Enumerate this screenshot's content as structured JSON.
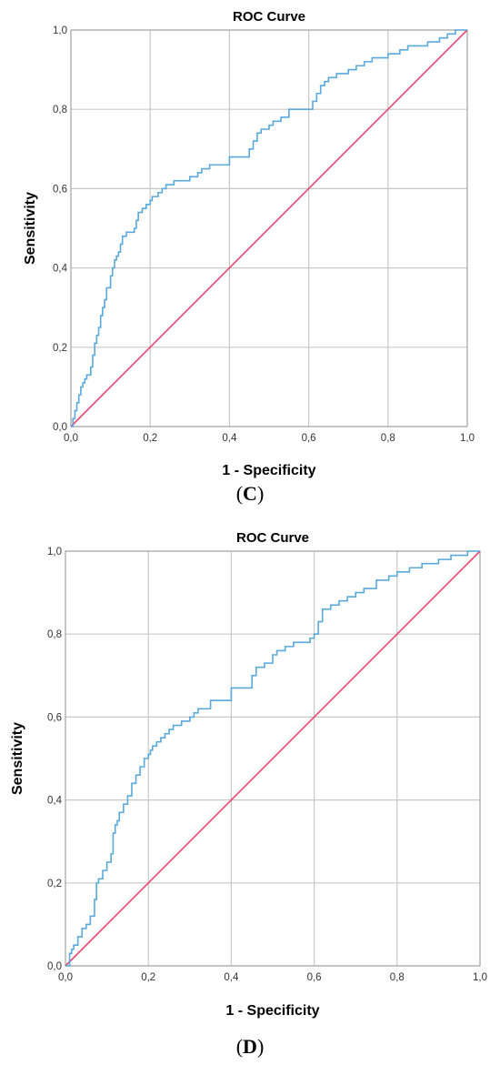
{
  "chart_data": [
    {
      "type": "line",
      "panel_label": "C",
      "title": "ROC Curve",
      "xlabel": "1 - Specificity",
      "ylabel": "Sensitivity",
      "xlim": [
        0,
        1
      ],
      "ylim": [
        0,
        1
      ],
      "grid": true,
      "x_ticks": [
        "0,0",
        "0,2",
        "0,4",
        "0,6",
        "0,8",
        "1,0"
      ],
      "y_ticks": [
        "0,0",
        "0,2",
        "0,4",
        "0,6",
        "0,8",
        "1,0"
      ],
      "colors": {
        "roc": "#5aa8dc",
        "reference": "#e8476e",
        "grid": "#c8c8c8"
      },
      "series": [
        {
          "x": [
            0,
            0.005,
            0.01,
            0.015,
            0.02,
            0.025,
            0.03,
            0.035,
            0.04,
            0.05,
            0.055,
            0.06,
            0.065,
            0.07,
            0.075,
            0.08,
            0.085,
            0.09,
            0.1,
            0.105,
            0.11,
            0.115,
            0.12,
            0.125,
            0.13,
            0.14,
            0.15,
            0.16,
            0.165,
            0.17,
            0.18,
            0.19,
            0.2,
            0.205,
            0.21,
            0.22,
            0.23,
            0.24,
            0.25,
            0.26,
            0.27,
            0.28,
            0.3,
            0.31,
            0.32,
            0.33,
            0.35,
            0.4,
            0.45,
            0.46,
            0.47,
            0.48,
            0.5,
            0.51,
            0.53,
            0.55,
            0.57,
            0.59,
            0.6,
            0.61,
            0.62,
            0.63,
            0.64,
            0.65,
            0.67,
            0.7,
            0.72,
            0.74,
            0.76,
            0.8,
            0.83,
            0.85,
            0.87,
            0.9,
            0.93,
            0.95,
            0.97,
            1
          ],
          "y": [
            0,
            0.02,
            0.04,
            0.06,
            0.08,
            0.1,
            0.11,
            0.12,
            0.13,
            0.15,
            0.18,
            0.21,
            0.23,
            0.25,
            0.28,
            0.3,
            0.32,
            0.35,
            0.38,
            0.4,
            0.42,
            0.43,
            0.44,
            0.46,
            0.48,
            0.49,
            0.49,
            0.5,
            0.52,
            0.54,
            0.55,
            0.56,
            0.57,
            0.58,
            0.58,
            0.59,
            0.6,
            0.61,
            0.61,
            0.62,
            0.62,
            0.62,
            0.63,
            0.63,
            0.64,
            0.65,
            0.66,
            0.68,
            0.7,
            0.72,
            0.74,
            0.75,
            0.76,
            0.77,
            0.78,
            0.8,
            0.8,
            0.8,
            0.8,
            0.82,
            0.84,
            0.86,
            0.87,
            0.88,
            0.89,
            0.9,
            0.91,
            0.92,
            0.93,
            0.94,
            0.95,
            0.96,
            0.96,
            0.97,
            0.98,
            0.99,
            1,
            1
          ]
        },
        {
          "x": [
            0,
            1
          ],
          "y": [
            0,
            1
          ]
        }
      ]
    },
    {
      "type": "line",
      "panel_label": "D",
      "title": "ROC Curve",
      "xlabel": "1 - Specificity",
      "ylabel": "Sensitivity",
      "xlim": [
        0,
        1
      ],
      "ylim": [
        0,
        1
      ],
      "grid": true,
      "x_ticks": [
        "0,0",
        "0,2",
        "0,4",
        "0,6",
        "0,8",
        "1,0"
      ],
      "y_ticks": [
        "0,0",
        "0,2",
        "0,4",
        "0,6",
        "0,8",
        "1,0"
      ],
      "colors": {
        "roc": "#5aa8dc",
        "reference": "#e8476e",
        "grid": "#c8c8c8"
      },
      "series": [
        {
          "x": [
            0,
            0.01,
            0.015,
            0.02,
            0.03,
            0.04,
            0.05,
            0.06,
            0.07,
            0.075,
            0.08,
            0.09,
            0.1,
            0.11,
            0.115,
            0.12,
            0.125,
            0.13,
            0.14,
            0.15,
            0.16,
            0.17,
            0.18,
            0.19,
            0.2,
            0.205,
            0.21,
            0.22,
            0.23,
            0.24,
            0.25,
            0.26,
            0.28,
            0.3,
            0.31,
            0.32,
            0.35,
            0.4,
            0.45,
            0.46,
            0.48,
            0.5,
            0.51,
            0.53,
            0.55,
            0.57,
            0.58,
            0.59,
            0.6,
            0.61,
            0.62,
            0.64,
            0.66,
            0.68,
            0.7,
            0.72,
            0.75,
            0.78,
            0.8,
            0.83,
            0.86,
            0.9,
            0.93,
            0.95,
            0.97,
            1
          ],
          "y": [
            0,
            0.03,
            0.04,
            0.05,
            0.07,
            0.09,
            0.1,
            0.12,
            0.16,
            0.2,
            0.21,
            0.23,
            0.25,
            0.27,
            0.32,
            0.34,
            0.35,
            0.37,
            0.39,
            0.41,
            0.44,
            0.46,
            0.48,
            0.5,
            0.51,
            0.52,
            0.53,
            0.54,
            0.55,
            0.56,
            0.57,
            0.58,
            0.59,
            0.6,
            0.61,
            0.62,
            0.64,
            0.67,
            0.7,
            0.72,
            0.73,
            0.75,
            0.76,
            0.77,
            0.78,
            0.78,
            0.78,
            0.79,
            0.8,
            0.83,
            0.86,
            0.87,
            0.88,
            0.89,
            0.9,
            0.91,
            0.93,
            0.94,
            0.95,
            0.96,
            0.97,
            0.98,
            0.99,
            0.99,
            1,
            1
          ]
        },
        {
          "x": [
            0,
            1
          ],
          "y": [
            0,
            1
          ]
        }
      ]
    }
  ]
}
